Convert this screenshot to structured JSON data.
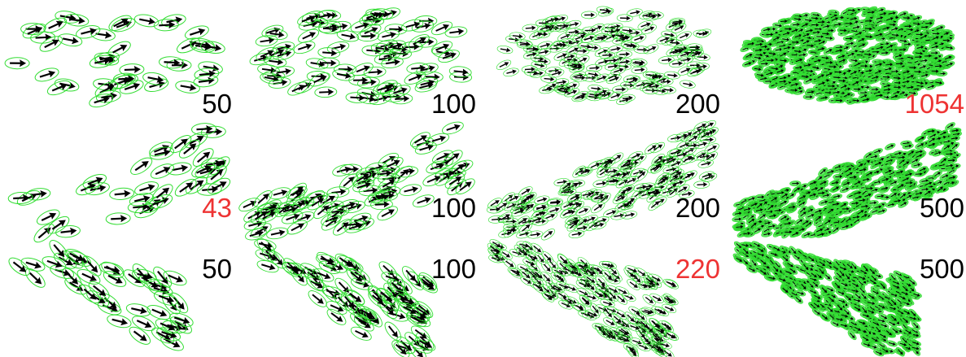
{
  "colors": {
    "ellipse": "#33dd33",
    "arrow": "#000000",
    "label_default": "#000000",
    "label_highlight": "#ee3333"
  },
  "rows": [
    {
      "style": "rounded-cloud",
      "panels": [
        {
          "label": "50",
          "highlight": false,
          "density": 50
        },
        {
          "label": "100",
          "highlight": false,
          "density": 100
        },
        {
          "label": "200",
          "highlight": false,
          "density": 200
        },
        {
          "label": "1054",
          "highlight": true,
          "density": 1054
        }
      ]
    },
    {
      "style": "tilted-slab",
      "panels": [
        {
          "label": "43",
          "highlight": true,
          "density": 43
        },
        {
          "label": "100",
          "highlight": false,
          "density": 100
        },
        {
          "label": "200",
          "highlight": false,
          "density": 200
        },
        {
          "label": "500",
          "highlight": false,
          "density": 500
        }
      ]
    },
    {
      "style": "diagonal-streaks",
      "panels": [
        {
          "label": "50",
          "highlight": false,
          "density": 50
        },
        {
          "label": "100",
          "highlight": false,
          "density": 100
        },
        {
          "label": "220",
          "highlight": true,
          "density": 220
        },
        {
          "label": "500",
          "highlight": false,
          "density": 500
        }
      ]
    }
  ]
}
